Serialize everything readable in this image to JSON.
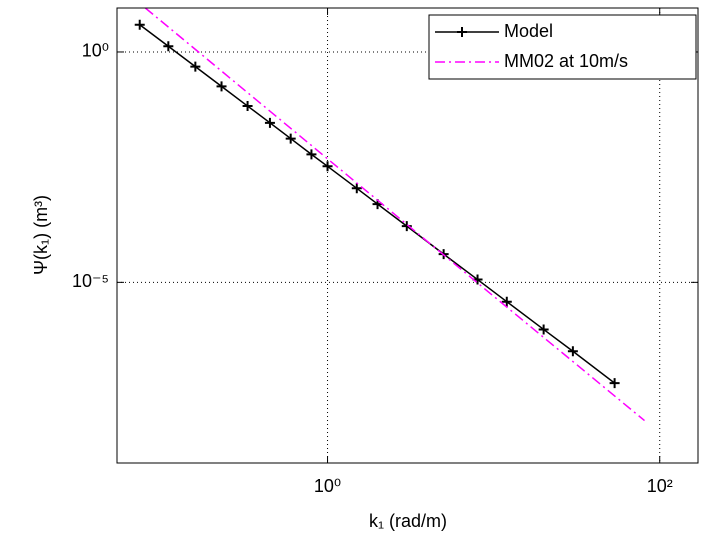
{
  "chart_data": {
    "type": "line",
    "xlabel": "k₁ (rad/m)",
    "ylabel": "Ψ(k₁) (m³)",
    "xscale": "log",
    "yscale": "log",
    "xlim": [
      0.054,
      170
    ],
    "ylim": [
      1.2e-09,
      9
    ],
    "xticks": [
      {
        "value": 1,
        "label": "10⁰"
      },
      {
        "value": 100,
        "label": "10²"
      }
    ],
    "yticks": [
      {
        "value": 1e-05,
        "label": "10⁻⁵"
      },
      {
        "value": 1,
        "label": "10⁰"
      }
    ],
    "grid": true,
    "legend": "upper right",
    "series": [
      {
        "name": "Model",
        "color": "#000000",
        "marker": "+",
        "x": [
          0.074,
          0.11,
          0.16,
          0.23,
          0.33,
          0.45,
          0.6,
          0.8,
          1,
          1.5,
          2,
          3,
          5,
          8,
          12,
          20,
          30,
          53.5
        ],
        "values": [
          3.9,
          1.33,
          0.48,
          0.179,
          0.067,
          0.029,
          0.0132,
          0.006,
          0.0033,
          0.0011,
          0.0005,
          0.000166,
          4.1e-05,
          1.15e-05,
          3.8e-06,
          9.5e-07,
          3.2e-07,
          6.5e-08
        ]
      },
      {
        "name": "MM02 at 10m/s",
        "color": "#ff00ff",
        "dash": "dashdot",
        "x": [
          0.08,
          1,
          10,
          81
        ],
        "values": [
          9,
          0.0048,
          5e-06,
          1e-08
        ]
      }
    ]
  }
}
